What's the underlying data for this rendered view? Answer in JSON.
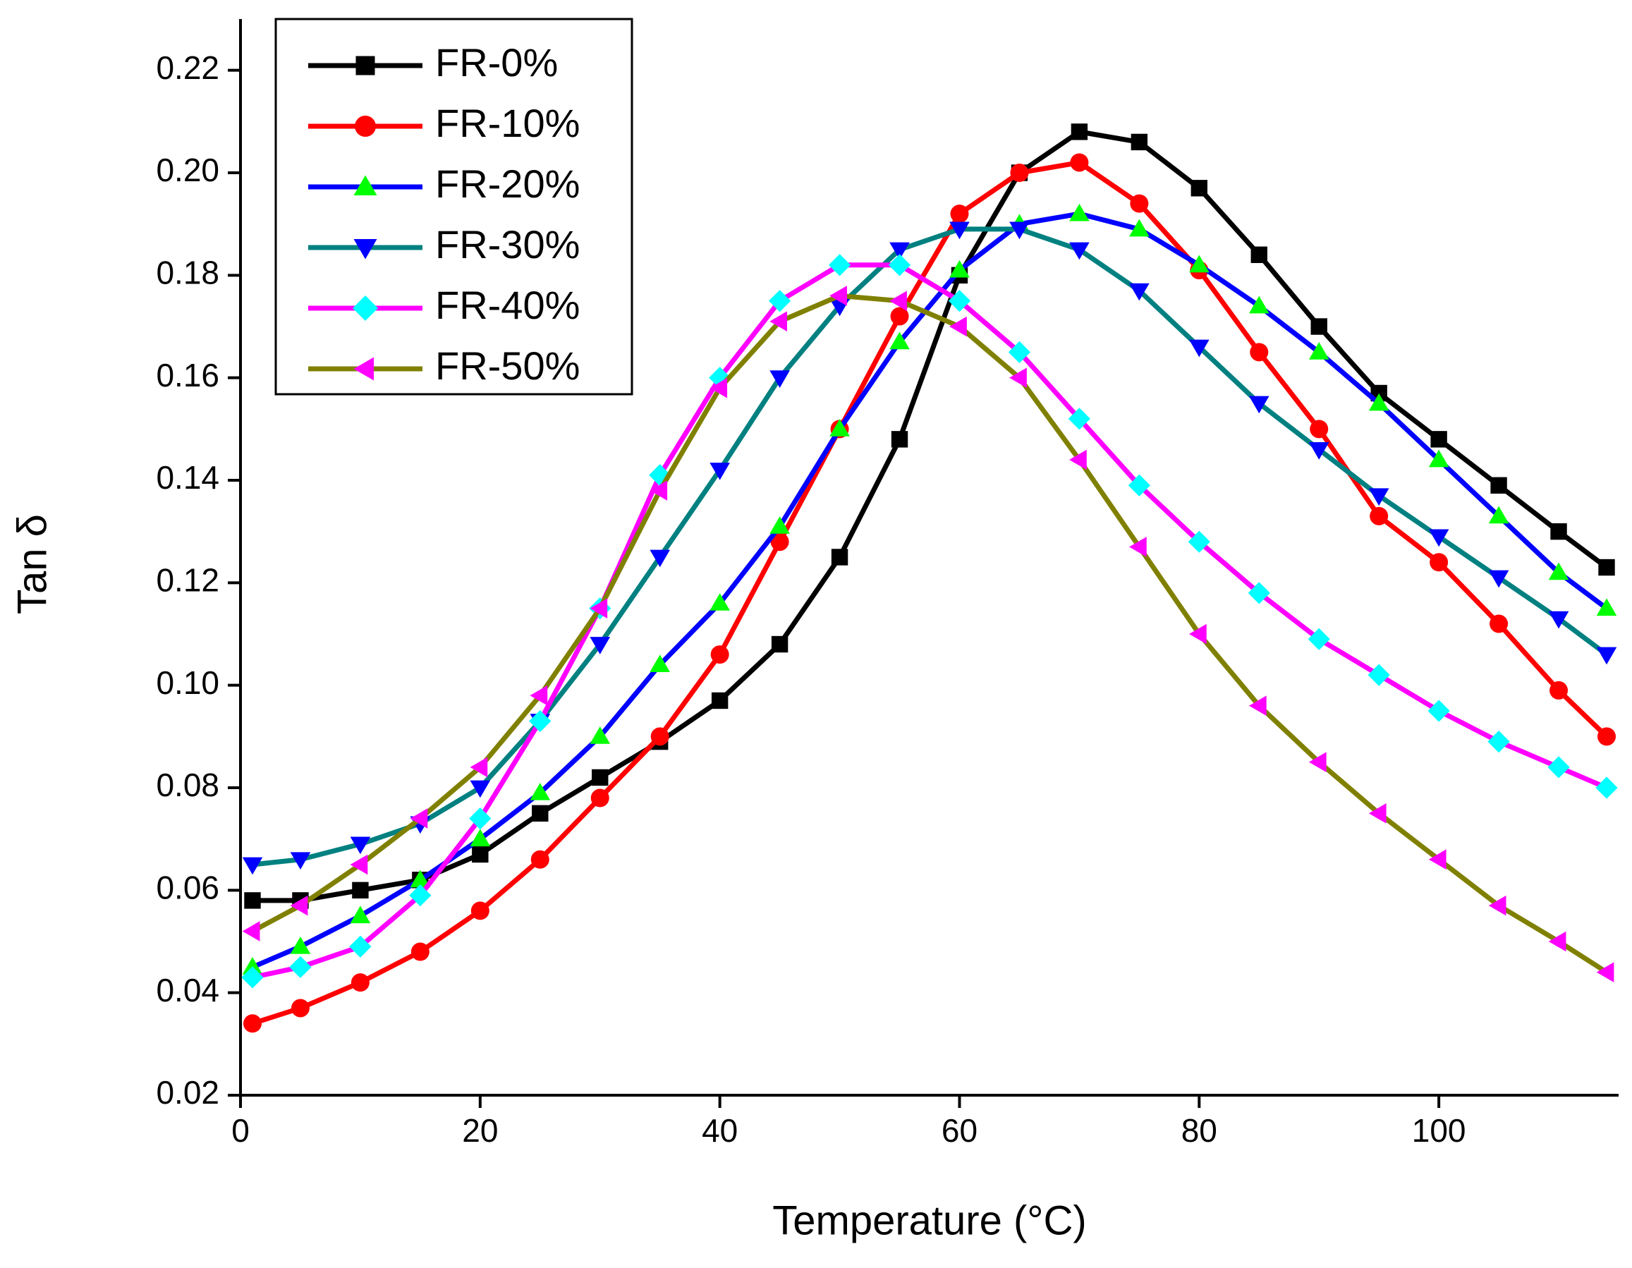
{
  "chart_data": {
    "type": "line",
    "xlabel": "Temperature (°C)",
    "ylabel": "Tan δ",
    "x": [
      1,
      5,
      10,
      15,
      20,
      25,
      30,
      35,
      40,
      45,
      50,
      55,
      60,
      65,
      70,
      75,
      80,
      85,
      90,
      95,
      100,
      105,
      110,
      114
    ],
    "series": [
      {
        "name": "FR-0%",
        "color": "#000000",
        "marker_color": "#000000",
        "marker": "square",
        "values": [
          0.058,
          0.058,
          0.06,
          0.062,
          0.067,
          0.075,
          0.082,
          0.089,
          0.097,
          0.108,
          0.125,
          0.148,
          0.18,
          0.2,
          0.208,
          0.206,
          0.197,
          0.184,
          0.17,
          0.157,
          0.148,
          0.139,
          0.13,
          0.123
        ]
      },
      {
        "name": "FR-10%",
        "color": "#ff0000",
        "marker_color": "#ff0000",
        "marker": "circle",
        "values": [
          0.034,
          0.037,
          0.042,
          0.048,
          0.056,
          0.066,
          0.078,
          0.09,
          0.106,
          0.128,
          0.15,
          0.172,
          0.192,
          0.2,
          0.202,
          0.194,
          0.181,
          0.165,
          0.15,
          0.133,
          0.124,
          0.112,
          0.099,
          0.09
        ]
      },
      {
        "name": "FR-20%",
        "color": "#0000ff",
        "marker_color": "#00ff00",
        "marker": "triangle-up",
        "values": [
          0.045,
          0.049,
          0.055,
          0.062,
          0.07,
          0.079,
          0.09,
          0.104,
          0.116,
          0.131,
          0.15,
          0.167,
          0.181,
          0.19,
          0.192,
          0.189,
          0.182,
          0.174,
          0.165,
          0.155,
          0.144,
          0.133,
          0.122,
          0.115
        ]
      },
      {
        "name": "FR-30%",
        "color": "#008080",
        "marker_color": "#0000ff",
        "marker": "triangle-down",
        "values": [
          0.065,
          0.066,
          0.069,
          0.073,
          0.08,
          0.093,
          0.108,
          0.125,
          0.142,
          0.16,
          0.174,
          0.185,
          0.189,
          0.189,
          0.185,
          0.177,
          0.166,
          0.155,
          0.146,
          0.137,
          0.129,
          0.121,
          0.113,
          0.106
        ]
      },
      {
        "name": "FR-40%",
        "color": "#ff00ff",
        "marker_color": "#00ffff",
        "marker": "diamond",
        "values": [
          0.043,
          0.045,
          0.049,
          0.059,
          0.074,
          0.093,
          0.115,
          0.141,
          0.16,
          0.175,
          0.182,
          0.182,
          0.175,
          0.165,
          0.152,
          0.139,
          0.128,
          0.118,
          0.109,
          0.102,
          0.095,
          0.089,
          0.084,
          0.08
        ]
      },
      {
        "name": "FR-50%",
        "color": "#808000",
        "marker_color": "#ff00ff",
        "marker": "triangle-left",
        "values": [
          0.052,
          0.057,
          0.065,
          0.074,
          0.084,
          0.098,
          0.115,
          0.138,
          0.158,
          0.171,
          0.176,
          0.175,
          0.17,
          0.16,
          0.144,
          0.127,
          0.11,
          0.096,
          0.085,
          0.075,
          0.066,
          0.057,
          0.05,
          0.044
        ]
      }
    ],
    "xlim": [
      0,
      115
    ],
    "xticks": [
      0,
      20,
      40,
      60,
      80,
      100
    ],
    "ylim": [
      0.02,
      0.23
    ],
    "yticks": [
      0.02,
      0.04,
      0.06,
      0.08,
      {
        "value": 0.1,
        "label": "0.10"
      },
      0.12,
      0.14,
      0.16,
      0.18,
      {
        "value": 0.2,
        "label": "0.20"
      },
      0.22
    ],
    "legend": "upper left",
    "grid": false
  }
}
